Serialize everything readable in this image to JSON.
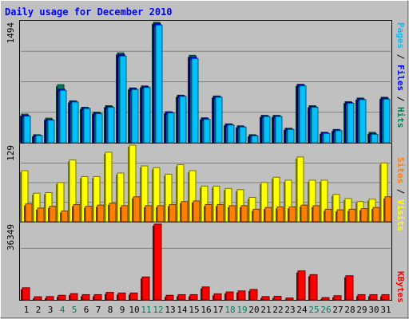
{
  "colors": {
    "background": "#c0c0c0",
    "title": "#0000ff",
    "hits": "#00805c",
    "files": "#0000ff",
    "pages": "#00c0ff",
    "visits": "#ffff00",
    "sites": "#ff8000",
    "kbytes": "#ff0000",
    "weekend": "#00805c",
    "weekday": "#000000"
  },
  "chart_data": {
    "type": "bar",
    "title": "Daily usage for December 2010",
    "categories": [
      "1",
      "2",
      "3",
      "4",
      "5",
      "6",
      "7",
      "8",
      "9",
      "10",
      "11",
      "12",
      "13",
      "14",
      "15",
      "16",
      "17",
      "18",
      "19",
      "20",
      "21",
      "22",
      "23",
      "24",
      "25",
      "26",
      "27",
      "28",
      "29",
      "30",
      "31"
    ],
    "weekend_days": [
      "4",
      "5",
      "11",
      "12",
      "18",
      "19",
      "25",
      "26"
    ],
    "panels": [
      {
        "id": "top",
        "max_label": "1494",
        "ymax": 1494,
        "legend": [
          "Pages",
          "Files",
          "Hits"
        ],
        "series": [
          {
            "name": "Hits",
            "values": [
              355,
              100,
              305,
              720,
              520,
              440,
              380,
              460,
              1115,
              680,
              705,
              1494,
              385,
              590,
              1085,
              310,
              580,
              235,
              210,
              100,
              340,
              340,
              180,
              725,
              460,
              130,
              165,
              510,
              555,
              130,
              565
            ]
          },
          {
            "name": "Files",
            "values": [
              340,
              95,
              290,
              665,
              515,
              435,
              370,
              450,
              1095,
              675,
              695,
              1480,
              380,
              585,
              1065,
              300,
              575,
              230,
              200,
              95,
              335,
              335,
              175,
              720,
              450,
              125,
              160,
              500,
              545,
              115,
              555
            ]
          },
          {
            "name": "Pages",
            "values": [
              330,
              90,
              280,
              650,
              505,
              425,
              360,
              440,
              1075,
              660,
              685,
              1460,
              370,
              575,
              1045,
              290,
              565,
              220,
              195,
              85,
              325,
              325,
              165,
              705,
              440,
              115,
              150,
              490,
              535,
              105,
              540
            ]
          }
        ]
      },
      {
        "id": "middle",
        "max_label": "129",
        "ymax": 129,
        "legend": [
          "Sites",
          "Visits"
        ],
        "series": [
          {
            "name": "Visits",
            "values": [
              86,
              48,
              49,
              66,
              104,
              76,
              76,
              117,
              82,
              129,
              94,
              91,
              80,
              96,
              86,
              60,
              60,
              56,
              54,
              41,
              66,
              75,
              70,
              109,
              70,
              70,
              46,
              39,
              34,
              38,
              99
            ]
          },
          {
            "name": "Sites",
            "values": [
              30,
              23,
              26,
              18,
              29,
              26,
              28,
              31,
              27,
              42,
              27,
              27,
              29,
              34,
              35,
              29,
              29,
              27,
              27,
              21,
              24,
              25,
              25,
              28,
              27,
              21,
              20,
              21,
              22,
              24,
              42
            ]
          }
        ]
      },
      {
        "id": "bottom",
        "max_label": "36349",
        "ymax": 36349,
        "legend": [
          "KBytes"
        ],
        "series": [
          {
            "name": "KBytes",
            "values": [
              5800,
              1500,
              1600,
              2200,
              3000,
              2500,
              2500,
              3600,
              3300,
              3300,
              11000,
              36349,
              2200,
              2500,
              2500,
              6200,
              2900,
              3800,
              4300,
              5000,
              1600,
              1700,
              900,
              13900,
              12100,
              1100,
              2000,
              11600,
              2500,
              2500,
              2500
            ]
          }
        ]
      }
    ]
  }
}
